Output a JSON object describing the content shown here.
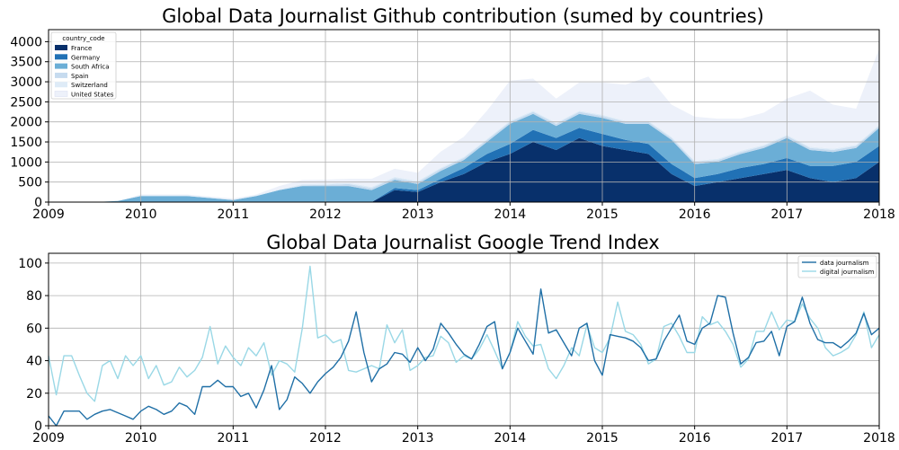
{
  "chart_data": [
    {
      "type": "area",
      "stacked": true,
      "title": "Global Data Journalist Github contribution (sumed by countries)",
      "xlabel": "",
      "ylabel": "",
      "xlim": [
        2009,
        2018
      ],
      "ylim": [
        0,
        4300
      ],
      "xticks": [
        2009,
        2010,
        2011,
        2012,
        2013,
        2014,
        2015,
        2016,
        2017,
        2018
      ],
      "yticks": [
        0,
        500,
        1000,
        1500,
        2000,
        2500,
        3000,
        3500,
        4000
      ],
      "grid": true,
      "legend": {
        "placement": "top-left",
        "title": "country_code"
      },
      "x": [
        2009.0,
        2009.25,
        2009.5,
        2009.75,
        2010.0,
        2010.25,
        2010.5,
        2010.75,
        2011.0,
        2011.25,
        2011.5,
        2011.75,
        2012.0,
        2012.25,
        2012.5,
        2012.75,
        2013.0,
        2013.25,
        2013.5,
        2013.75,
        2014.0,
        2014.25,
        2014.5,
        2014.75,
        2015.0,
        2015.25,
        2015.5,
        2015.75,
        2016.0,
        2016.25,
        2016.5,
        2016.75,
        2017.0,
        2017.25,
        2017.5,
        2017.75,
        2018.0
      ],
      "series": [
        {
          "name": "France",
          "color": "#08306b",
          "values": [
            0,
            0,
            0,
            0,
            0,
            0,
            0,
            0,
            0,
            0,
            0,
            0,
            0,
            0,
            0,
            300,
            250,
            500,
            700,
            1000,
            1200,
            1500,
            1300,
            1600,
            1400,
            1300,
            1200,
            700,
            400,
            500,
            600,
            700,
            800,
            600,
            500,
            600,
            1000
          ]
        },
        {
          "name": "Germany",
          "color": "#2171b5",
          "values": [
            0,
            0,
            0,
            0,
            0,
            0,
            0,
            0,
            0,
            0,
            0,
            0,
            0,
            0,
            0,
            50,
            50,
            80,
            150,
            200,
            250,
            300,
            300,
            250,
            300,
            250,
            250,
            250,
            200,
            200,
            250,
            250,
            300,
            300,
            400,
            400,
            400
          ]
        },
        {
          "name": "South Africa",
          "color": "#6baed6",
          "values": [
            10,
            0,
            0,
            30,
            150,
            150,
            150,
            100,
            50,
            150,
            300,
            400,
            400,
            400,
            300,
            200,
            150,
            200,
            200,
            300,
            500,
            400,
            300,
            350,
            400,
            400,
            500,
            600,
            350,
            300,
            350,
            400,
            500,
            400,
            350,
            350,
            450
          ]
        },
        {
          "name": "Spain",
          "color": "#c6dbef",
          "values": [
            0,
            0,
            0,
            0,
            0,
            0,
            0,
            0,
            0,
            0,
            0,
            20,
            30,
            50,
            50,
            50,
            50,
            50,
            50,
            50,
            50,
            50,
            50,
            50,
            50,
            50,
            50,
            50,
            50,
            50,
            50,
            50,
            50,
            50,
            50,
            50,
            50
          ]
        },
        {
          "name": "Switzerland",
          "color": "#deebf7",
          "values": [
            0,
            0,
            0,
            0,
            20,
            20,
            20,
            20,
            20,
            20,
            20,
            30,
            30,
            30,
            30,
            30,
            30,
            30,
            30,
            30,
            30,
            30,
            30,
            30,
            30,
            30,
            30,
            30,
            30,
            30,
            30,
            30,
            30,
            30,
            30,
            30,
            30
          ]
        },
        {
          "name": "United States",
          "color": "#edf1fa",
          "values": [
            0,
            0,
            0,
            0,
            20,
            20,
            20,
            20,
            20,
            20,
            80,
            100,
            100,
            100,
            200,
            200,
            200,
            400,
            500,
            700,
            1000,
            800,
            600,
            700,
            800,
            900,
            1100,
            800,
            1100,
            1000,
            800,
            800,
            900,
            1400,
            1100,
            900,
            1900
          ]
        }
      ]
    },
    {
      "type": "line",
      "title": "Global Data Journalist Google Trend Index",
      "xlabel": "",
      "ylabel": "",
      "xlim": [
        2009,
        2018
      ],
      "ylim": [
        0,
        106
      ],
      "xticks": [
        2009,
        2010,
        2011,
        2012,
        2013,
        2014,
        2015,
        2016,
        2017,
        2018
      ],
      "yticks": [
        0,
        20,
        40,
        60,
        80,
        100
      ],
      "grid": true,
      "legend": {
        "placement": "top-right"
      },
      "x_start": 2009.0,
      "x_step_months": 1,
      "series": [
        {
          "name": "data journalism",
          "color": "#1f6fa6",
          "values": [
            6,
            0,
            9,
            9,
            9,
            4,
            7,
            9,
            10,
            8,
            6,
            4,
            9,
            12,
            10,
            7,
            9,
            14,
            12,
            7,
            24,
            24,
            28,
            24,
            24,
            18,
            20,
            11,
            22,
            37,
            10,
            16,
            30,
            26,
            20,
            27,
            32,
            36,
            42,
            52,
            70,
            45,
            27,
            35,
            38,
            45,
            44,
            39,
            48,
            40,
            47,
            63,
            57,
            50,
            44,
            41,
            50,
            61,
            64,
            35,
            45,
            60,
            52,
            44,
            84,
            57,
            59,
            51,
            43,
            60,
            63,
            40,
            31,
            56,
            55,
            54,
            52,
            48,
            40,
            41,
            52,
            60,
            68,
            52,
            50,
            60,
            63,
            80,
            79,
            57,
            38,
            42,
            51,
            52,
            58,
            43,
            61,
            64,
            79,
            63,
            53,
            51,
            51,
            48,
            52,
            57,
            69,
            56,
            60
          ]
        },
        {
          "name": "digital journalism",
          "color": "#9ad8e6",
          "values": [
            43,
            19,
            43,
            43,
            31,
            20,
            15,
            37,
            40,
            29,
            43,
            37,
            43,
            29,
            37,
            25,
            27,
            36,
            30,
            34,
            42,
            61,
            38,
            49,
            42,
            37,
            48,
            43,
            51,
            31,
            40,
            38,
            33,
            60,
            98,
            54,
            56,
            51,
            53,
            34,
            33,
            35,
            37,
            35,
            62,
            51,
            59,
            34,
            37,
            42,
            43,
            55,
            51,
            39,
            43,
            41,
            47,
            56,
            46,
            35,
            45,
            64,
            55,
            49,
            50,
            35,
            29,
            37,
            48,
            43,
            62,
            48,
            45,
            54,
            76,
            58,
            56,
            50,
            38,
            41,
            61,
            63,
            55,
            45,
            45,
            67,
            62,
            64,
            58,
            50,
            36,
            41,
            58,
            58,
            70,
            59,
            65,
            64,
            75,
            66,
            60,
            48,
            43,
            45,
            48,
            56,
            70,
            48,
            56
          ]
        }
      ]
    }
  ]
}
